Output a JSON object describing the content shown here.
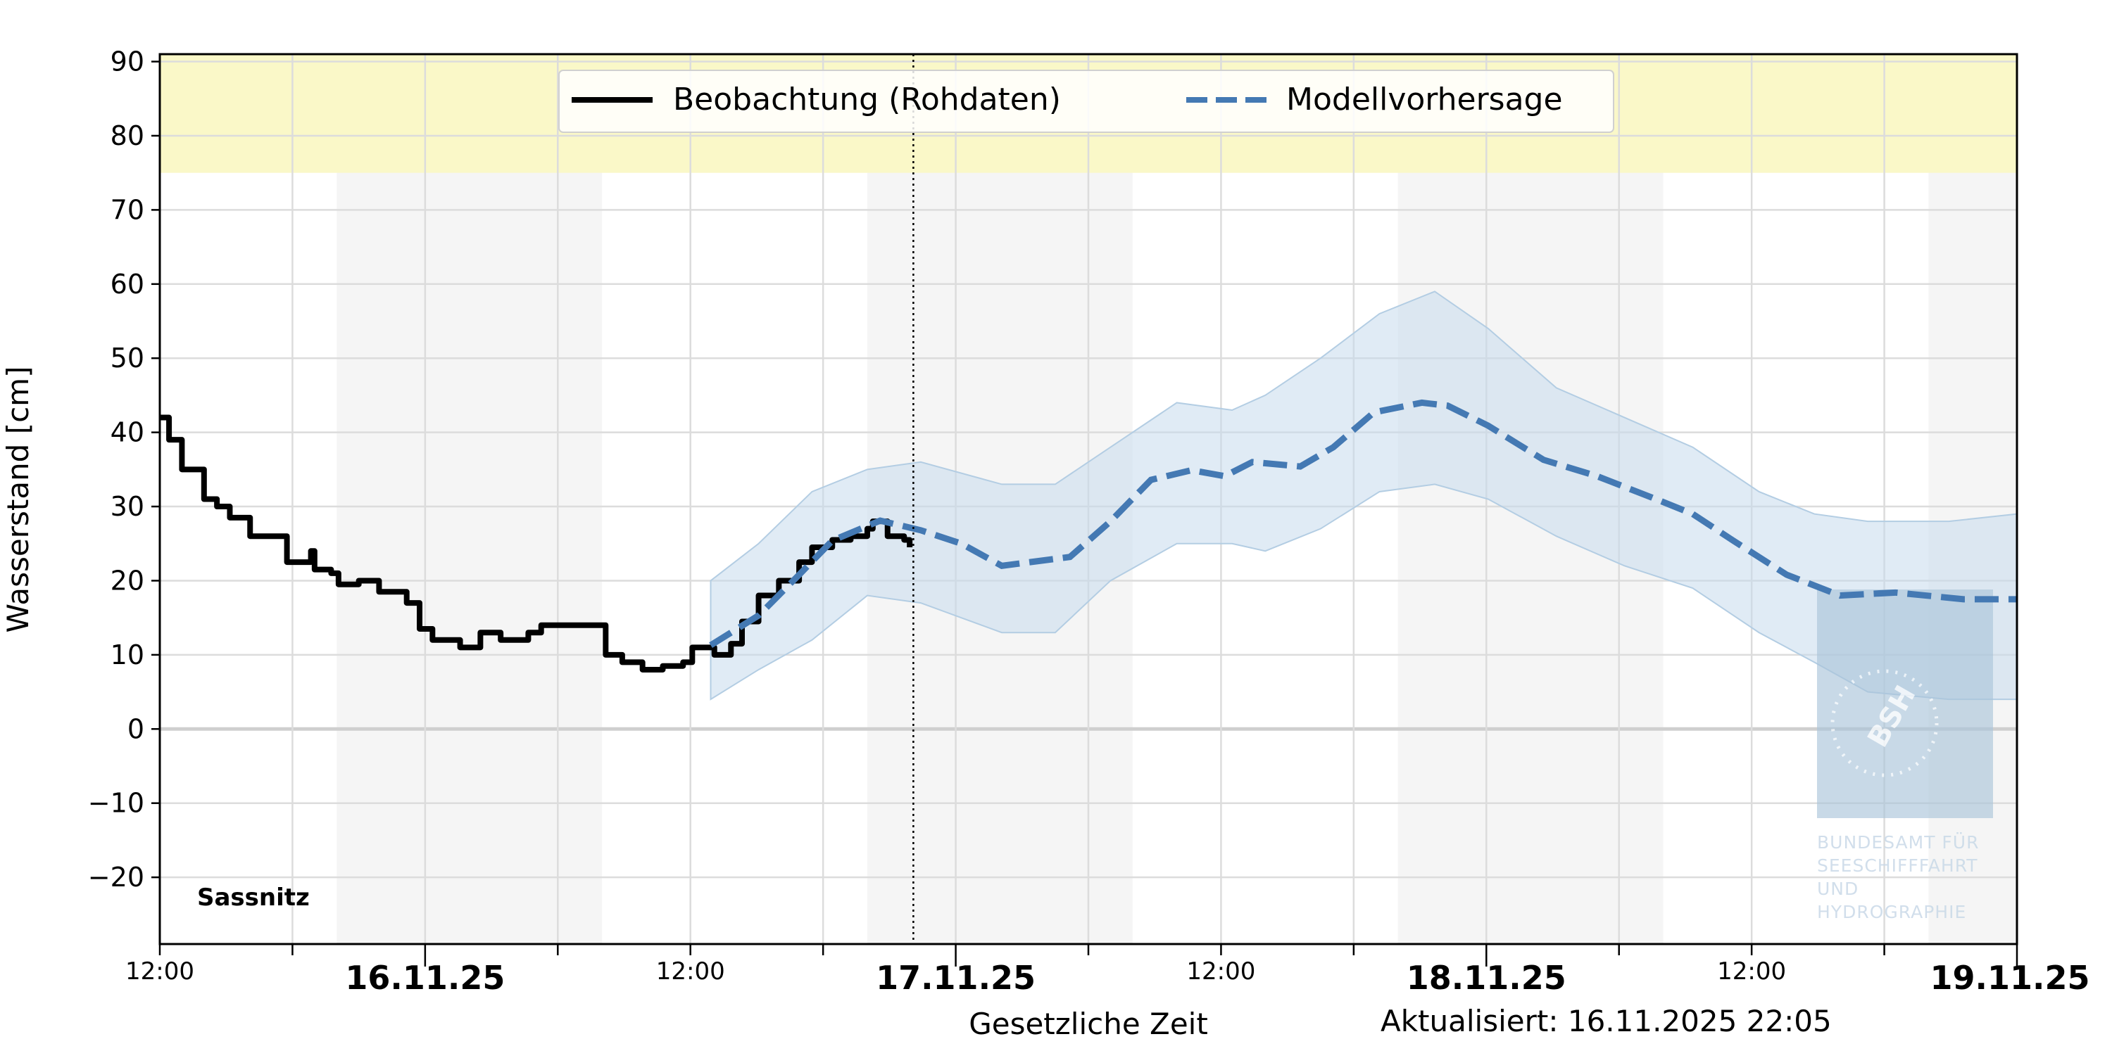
{
  "chart_data": {
    "type": "line",
    "station": "Sassnitz",
    "xlabel": "Gesetzliche Zeit",
    "ylabel": "Wasserstand [cm]",
    "updated": "Aktualisiert: 16.11.2025 22:05",
    "xlim": [
      "2025-11-15 12:00",
      "2025-11-19 00:00"
    ],
    "ylim": [
      -29,
      91
    ],
    "yticks": [
      -20,
      -10,
      0,
      10,
      20,
      30,
      40,
      50,
      60,
      70,
      80,
      90
    ],
    "ytick_labels": [
      "−20",
      "−10",
      "0",
      "10",
      "20",
      "30",
      "40",
      "50",
      "60",
      "70",
      "80",
      "90"
    ],
    "xticks": [
      {
        "t": "2025-11-15 12:00",
        "label": "12:00",
        "major": false
      },
      {
        "t": "2025-11-16 00:00",
        "label": "16.11.25",
        "major": true
      },
      {
        "t": "2025-11-16 12:00",
        "label": "12:00",
        "major": false
      },
      {
        "t": "2025-11-17 00:00",
        "label": "17.11.25",
        "major": true
      },
      {
        "t": "2025-11-17 12:00",
        "label": "12:00",
        "major": false
      },
      {
        "t": "2025-11-18 00:00",
        "label": "18.11.25",
        "major": true
      },
      {
        "t": "2025-11-18 12:00",
        "label": "12:00",
        "major": false
      },
      {
        "t": "2025-11-19 00:00",
        "label": "19.11.25",
        "major": true
      }
    ],
    "grid": true,
    "warning_band": {
      "from": 75,
      "to": 91,
      "color": "#faf8c8"
    },
    "night_shading": [
      [
        "2025-11-15 20:00",
        "2025-11-16 08:00"
      ],
      [
        "2025-11-16 20:00",
        "2025-11-17 08:00"
      ],
      [
        "2025-11-17 20:00",
        "2025-11-18 08:00"
      ],
      [
        "2025-11-18 20:00",
        "2025-11-19 00:00"
      ]
    ],
    "now_marker": "2025-11-16 22:05",
    "legend": {
      "placement": "top-center",
      "entries": [
        "Beobachtung (Rohdaten)",
        "Modellvorhersage"
      ]
    },
    "series": [
      {
        "name": "Beobachtung (Rohdaten)",
        "color": "#000000",
        "style": "solid-step",
        "points": [
          [
            "2025-11-15 12:00",
            42
          ],
          [
            "2025-11-15 12:25",
            39
          ],
          [
            "2025-11-15 13:00",
            35
          ],
          [
            "2025-11-15 14:00",
            31
          ],
          [
            "2025-11-15 14:35",
            30
          ],
          [
            "2025-11-15 15:10",
            28.5
          ],
          [
            "2025-11-15 16:05",
            26
          ],
          [
            "2025-11-15 17:20",
            26
          ],
          [
            "2025-11-15 17:45",
            22.5
          ],
          [
            "2025-11-15 18:50",
            24
          ],
          [
            "2025-11-15 19:00",
            21.5
          ],
          [
            "2025-11-15 19:45",
            21
          ],
          [
            "2025-11-15 20:05",
            19.5
          ],
          [
            "2025-11-15 21:00",
            20
          ],
          [
            "2025-11-15 21:55",
            18.5
          ],
          [
            "2025-11-15 23:10",
            17
          ],
          [
            "2025-11-15 23:45",
            13.5
          ],
          [
            "2025-11-16 00:20",
            12
          ],
          [
            "2025-11-16 01:35",
            11
          ],
          [
            "2025-11-16 02:30",
            13
          ],
          [
            "2025-11-16 03:25",
            12
          ],
          [
            "2025-11-16 04:40",
            13
          ],
          [
            "2025-11-16 05:15",
            14
          ],
          [
            "2025-11-16 07:45",
            14
          ],
          [
            "2025-11-16 08:10",
            10
          ],
          [
            "2025-11-16 08:55",
            9
          ],
          [
            "2025-11-16 09:50",
            8
          ],
          [
            "2025-11-16 10:45",
            8.5
          ],
          [
            "2025-11-16 11:40",
            9
          ],
          [
            "2025-11-16 12:05",
            11
          ],
          [
            "2025-11-16 13:05",
            10
          ],
          [
            "2025-11-16 13:50",
            11.5
          ],
          [
            "2025-11-16 14:20",
            14.5
          ],
          [
            "2025-11-16 15:05",
            18
          ],
          [
            "2025-11-16 16:00",
            20
          ],
          [
            "2025-11-16 16:55",
            22.5
          ],
          [
            "2025-11-16 17:30",
            24.5
          ],
          [
            "2025-11-16 18:25",
            25.5
          ],
          [
            "2025-11-16 19:15",
            26
          ],
          [
            "2025-11-16 20:00",
            27
          ],
          [
            "2025-11-16 20:15",
            28
          ],
          [
            "2025-11-16 20:55",
            26
          ],
          [
            "2025-11-16 21:40",
            25.5
          ],
          [
            "2025-11-16 21:55",
            24.5
          ]
        ]
      },
      {
        "name": "Modellvorhersage",
        "color": "#4479b3",
        "style": "dashed",
        "points": [
          [
            "2025-11-16 12:55",
            11.3
          ],
          [
            "2025-11-16 15:05",
            15.3
          ],
          [
            "2025-11-16 16:55",
            20.8
          ],
          [
            "2025-11-16 18:25",
            25.4
          ],
          [
            "2025-11-16 20:35",
            28.1
          ],
          [
            "2025-11-16 22:25",
            26.8
          ],
          [
            "2025-11-17 00:15",
            25
          ],
          [
            "2025-11-17 02:05",
            22
          ],
          [
            "2025-11-17 05:10",
            23.2
          ],
          [
            "2025-11-17 07:00",
            28
          ],
          [
            "2025-11-17 08:50",
            33.6
          ],
          [
            "2025-11-17 10:40",
            34.9
          ],
          [
            "2025-11-17 12:10",
            34.1
          ],
          [
            "2025-11-17 13:25",
            36
          ],
          [
            "2025-11-17 15:35",
            35.4
          ],
          [
            "2025-11-17 17:05",
            38
          ],
          [
            "2025-11-17 18:55",
            42.7
          ],
          [
            "2025-11-17 21:05",
            44
          ],
          [
            "2025-11-17 22:15",
            43.6
          ],
          [
            "2025-11-18 00:05",
            40.9
          ],
          [
            "2025-11-18 02:35",
            36.3
          ],
          [
            "2025-11-18 05:00",
            34.1
          ],
          [
            "2025-11-18 07:30",
            31.2
          ],
          [
            "2025-11-18 09:20",
            29
          ],
          [
            "2025-11-18 11:10",
            25.4
          ],
          [
            "2025-11-18 13:35",
            20.8
          ],
          [
            "2025-11-18 16:00",
            18
          ],
          [
            "2025-11-18 18:30",
            18.4
          ],
          [
            "2025-11-18 21:35",
            17.5
          ],
          [
            "2025-11-19 00:00",
            17.5
          ]
        ],
        "band": [
          [
            "2025-11-16 12:55",
            20,
            4
          ],
          [
            "2025-11-16 15:05",
            25,
            8
          ],
          [
            "2025-11-16 17:30",
            32,
            12
          ],
          [
            "2025-11-16 20:00",
            35,
            18
          ],
          [
            "2025-11-16 22:25",
            36,
            17
          ],
          [
            "2025-11-17 02:05",
            33,
            13
          ],
          [
            "2025-11-17 04:30",
            33,
            13
          ],
          [
            "2025-11-17 07:00",
            38,
            20
          ],
          [
            "2025-11-17 10:00",
            44,
            25
          ],
          [
            "2025-11-17 12:30",
            43,
            25
          ],
          [
            "2025-11-17 14:00",
            45,
            24
          ],
          [
            "2025-11-17 16:30",
            50,
            27
          ],
          [
            "2025-11-17 19:10",
            56,
            32
          ],
          [
            "2025-11-17 21:40",
            59,
            33
          ],
          [
            "2025-11-18 00:05",
            54,
            31
          ],
          [
            "2025-11-18 03:10",
            46,
            26
          ],
          [
            "2025-11-18 06:15",
            42,
            22
          ],
          [
            "2025-11-18 09:20",
            38,
            19
          ],
          [
            "2025-11-18 12:20",
            32,
            13
          ],
          [
            "2025-11-18 14:50",
            29,
            9
          ],
          [
            "2025-11-18 17:15",
            28,
            5
          ],
          [
            "2025-11-18 20:55",
            28,
            4
          ],
          [
            "2025-11-19 00:00",
            29,
            4
          ]
        ],
        "band_color": "#c6dbec"
      }
    ],
    "logo": {
      "mark": "BSH",
      "lines": [
        "BUNDESAMT FÜR",
        "SEESCHIFFFAHRT",
        "UND",
        "HYDROGRAPHIE"
      ]
    }
  }
}
